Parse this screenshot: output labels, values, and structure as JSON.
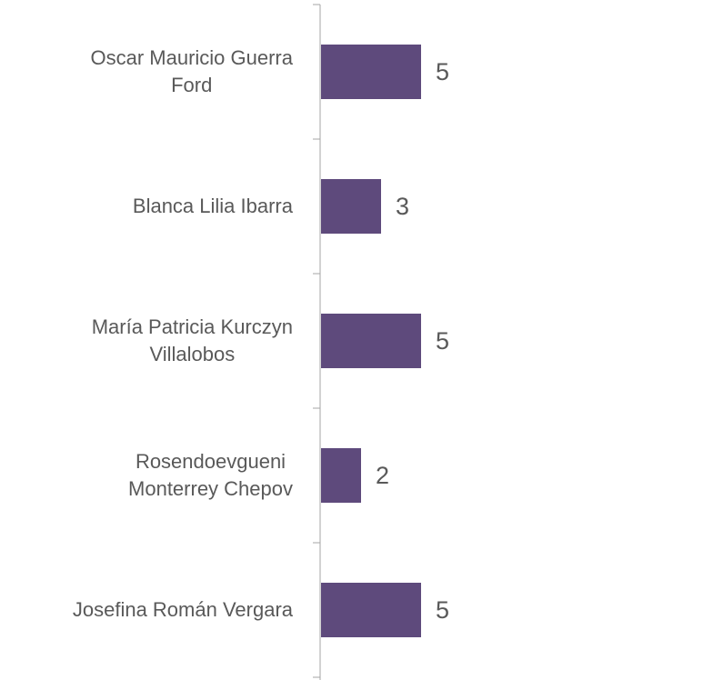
{
  "chart_data": {
    "type": "bar",
    "orientation": "horizontal",
    "categories": [
      "Oscar Mauricio Guerra\nFord",
      "Blanca Lilia Ibarra",
      "María Patricia Kurczyn\nVillalobos",
      "Rosendoevgueni\nMonterrey Chepov",
      "Josefina Román Vergara"
    ],
    "values": [
      5,
      3,
      5,
      2,
      5
    ],
    "color": "#5e4a7c"
  }
}
